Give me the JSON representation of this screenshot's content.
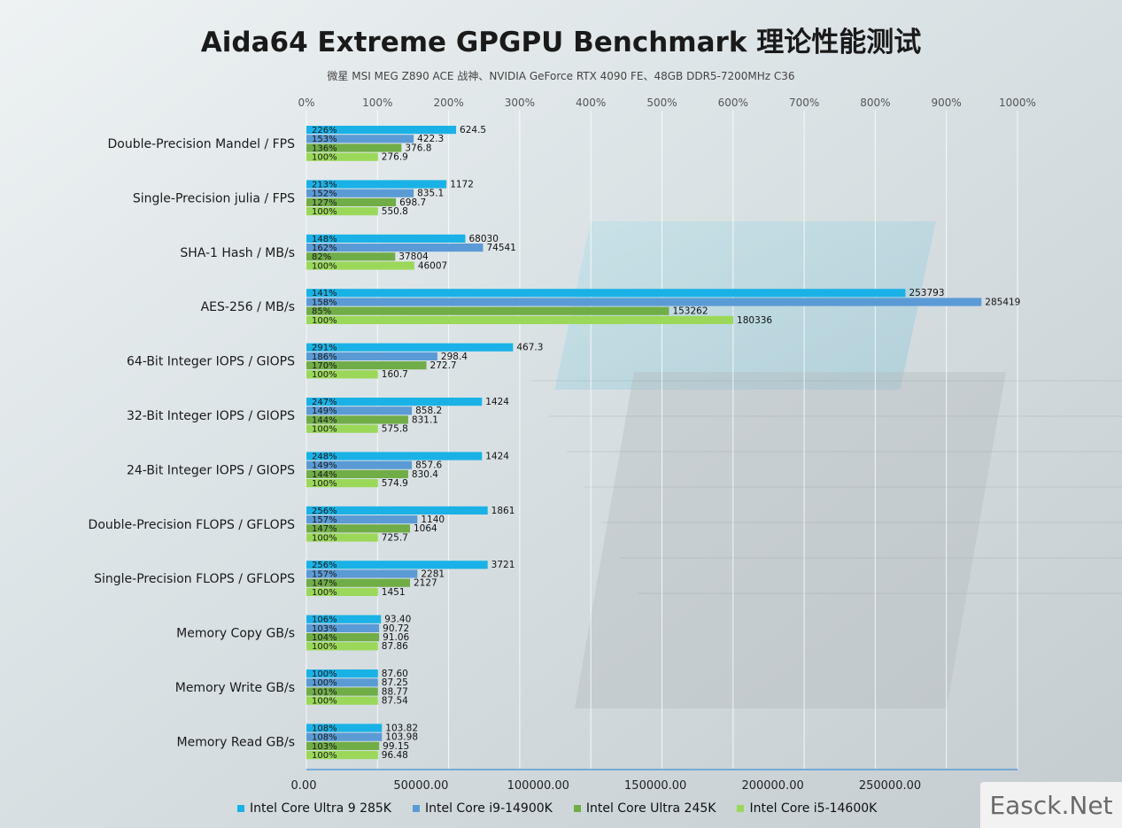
{
  "title": "Aida64 Extreme GPGPU Benchmark 理论性能测试",
  "subtitle": "微星 MSI MEG Z890 ACE 战神、NVIDIA GeForce RTX 4090 FE、48GB DDR5-7200MHz C36",
  "watermark": "Easck.Net",
  "colors": {
    "s1": "#1ab2e6",
    "s2": "#5b9bd5",
    "s3": "#70ad47",
    "s4": "#9bd85a"
  },
  "legend": [
    {
      "name": "Intel Core Ultra 9 285K",
      "color": "#1ab2e6"
    },
    {
      "name": "Intel Core i9-14900K",
      "color": "#5b9bd5"
    },
    {
      "name": "Intel Core Ultra 245K",
      "color": "#70ad47"
    },
    {
      "name": "Intel Core i5-14600K",
      "color": "#9bd85a"
    }
  ],
  "chart_data": {
    "type": "bar",
    "orientation": "horizontal",
    "x_top_ticks": [
      "0%",
      "100%",
      "200%",
      "300%",
      "400%",
      "500%",
      "600%",
      "700%",
      "800%",
      "900%",
      "1000%"
    ],
    "x_bottom_ticks": [
      "0.00",
      "50000.00",
      "100000.00",
      "150000.00",
      "200000.00",
      "250000.00"
    ],
    "xlim_percent": [
      0,
      1000
    ],
    "grid": "vertical",
    "legend_position": "bottom",
    "categories": [
      "Double-Precision Mandel / FPS",
      "Single-Precision julia / FPS",
      "SHA-1 Hash / MB/s",
      "AES-256 / MB/s",
      "64-Bit Integer IOPS / GIOPS",
      "32-Bit Integer IOPS / GIOPS",
      "24-Bit Integer IOPS / GIOPS",
      "Double-Precision FLOPS / GFLOPS",
      "Single-Precision FLOPS / GFLOPS",
      "Memory Copy GB/s",
      "Memory Write GB/s",
      "Memory Read GB/s"
    ],
    "series": [
      {
        "name": "Intel Core Ultra 9 285K",
        "percent": [
          "226%",
          "213%",
          "148%",
          "141%",
          "291%",
          "247%",
          "248%",
          "256%",
          "256%",
          "106%",
          "100%",
          "108%"
        ],
        "labels": [
          "624.5",
          "1172",
          "68030",
          "253793",
          "467.3",
          "1424",
          "1424",
          "1861",
          "3721",
          "93.40",
          "87.60",
          "103.82"
        ],
        "bar_fraction": [
          0.2105,
          0.197,
          0.2235,
          0.8424,
          0.2906,
          0.2469,
          0.2469,
          0.2549,
          0.2549,
          0.1049,
          0.1006,
          0.1062
        ]
      },
      {
        "name": "Intel Core i9-14900K",
        "percent": [
          "153%",
          "152%",
          "162%",
          "158%",
          "186%",
          "149%",
          "149%",
          "157%",
          "157%",
          "103%",
          "100%",
          "108%"
        ],
        "labels": [
          "422.3",
          "835.1",
          "74541",
          "285419",
          "298.4",
          "858.2",
          "857.6",
          "1140",
          "2281",
          "90.72",
          "87.25",
          "103.98"
        ],
        "bar_fraction": [
          0.1509,
          0.1509,
          0.2484,
          0.9493,
          0.1842,
          0.1483,
          0.1483,
          0.1561,
          0.1561,
          0.1023,
          0.1006,
          0.1062
        ]
      },
      {
        "name": "Intel Core Ultra 245K",
        "percent": [
          "136%",
          "127%",
          "82%",
          "85%",
          "170%",
          "144%",
          "144%",
          "147%",
          "147%",
          "104%",
          "101%",
          "103%"
        ],
        "labels": [
          "376.8",
          "698.7",
          "37804",
          "153262",
          "272.7",
          "831.1",
          "830.4",
          "1064",
          "2127",
          "91.06",
          "88.77",
          "99.15"
        ],
        "bar_fraction": [
          0.1337,
          0.1259,
          0.1249,
          0.5099,
          0.1688,
          0.1431,
          0.1431,
          0.1457,
          0.1457,
          0.1023,
          0.1006,
          0.1023
        ]
      },
      {
        "name": "Intel Core i5-14600K",
        "percent": [
          "100%",
          "100%",
          "100%",
          "100%",
          "100%",
          "100%",
          "100%",
          "100%",
          "100%",
          "100%",
          "100%",
          "100%"
        ],
        "labels": [
          "276.9",
          "550.8",
          "46007",
          "180336",
          "160.7",
          "575.8",
          "574.9",
          "725.7",
          "1451",
          "87.86",
          "87.54",
          "96.48"
        ],
        "bar_fraction": [
          0.1006,
          0.1006,
          0.1517,
          0.6003,
          0.1006,
          0.1006,
          0.1006,
          0.1006,
          0.1006,
          0.1006,
          0.1006,
          0.1006
        ]
      }
    ]
  }
}
